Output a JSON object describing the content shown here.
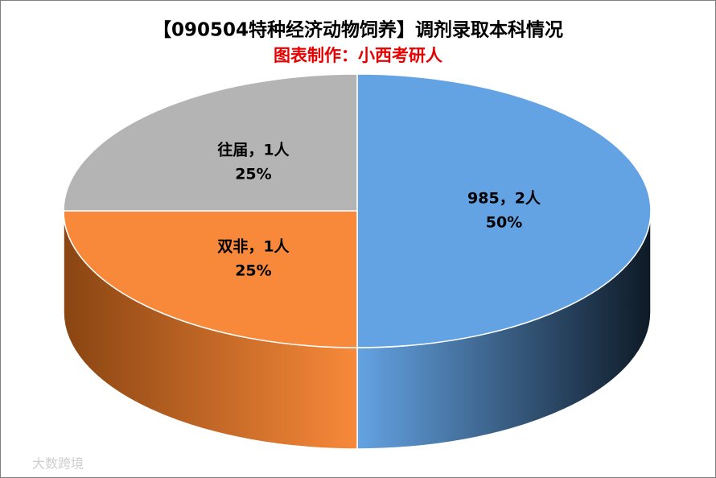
{
  "chart_data": {
    "type": "pie",
    "title": "【090504特种经济动物饲养】调剂录取本科情况",
    "subtitle": "图表制作：小西考研人",
    "categories": [
      "985",
      "双非",
      "往届"
    ],
    "values": [
      2,
      1,
      1
    ],
    "value_labels": [
      "985，2人",
      "双非，1人",
      "往届，1人"
    ],
    "percents": [
      50,
      25,
      25
    ],
    "percent_labels": [
      "50%",
      "25%",
      "25%"
    ],
    "colors": [
      "#64a3e3",
      "#f8893a",
      "#b4b4b4"
    ],
    "side_dark_colors": [
      "#0e1a26",
      "#8a4512",
      "#555555"
    ],
    "watermark": "大数跨境"
  }
}
